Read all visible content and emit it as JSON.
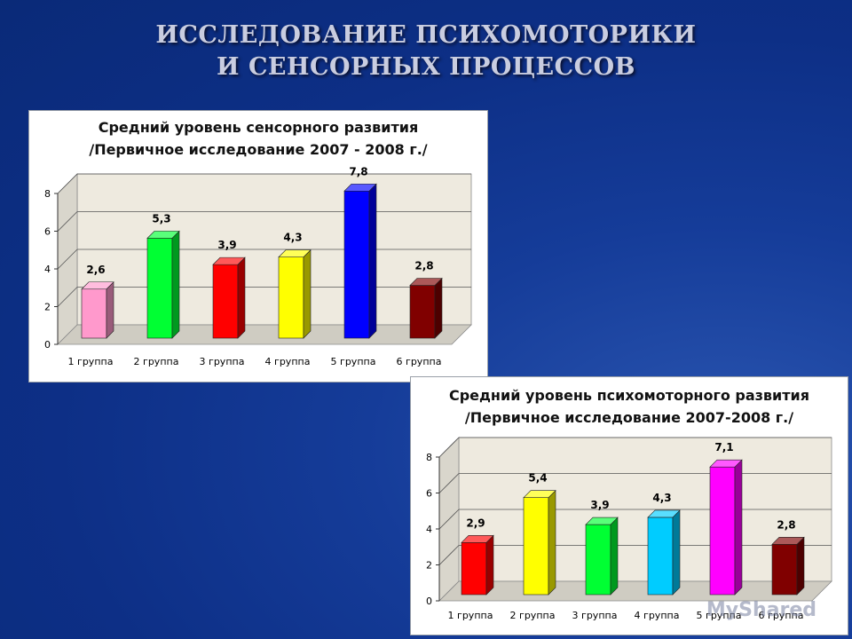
{
  "slide": {
    "title_line1": "ИССЛЕДОВАНИЕ ПСИХОМОТОРИКИ",
    "title_line2": "И СЕНСОРНЫХ ПРОЦЕССОВ",
    "watermark": "MyShared"
  },
  "chart_data": [
    {
      "type": "bar",
      "title_line1": "Средний уровень сенсорного развития",
      "title_line2": "/Первичное исследование 2007 - 2008 г./",
      "categories": [
        "1 группа",
        "2 группа",
        "3 группа",
        "4 группа",
        "5 группа",
        "6 группа"
      ],
      "values": [
        2.6,
        5.3,
        3.9,
        4.3,
        7.8,
        2.8
      ],
      "labels": [
        "2,6",
        "5,3",
        "3,9",
        "4,3",
        "7,8",
        "2,8"
      ],
      "colors": [
        "#ff99cc",
        "#00ff33",
        "#ff0000",
        "#ffff00",
        "#0000ff",
        "#800000"
      ],
      "ylim": [
        0,
        8
      ],
      "yticks": [
        0,
        2,
        4,
        6,
        8
      ],
      "grid": true,
      "legend": "none"
    },
    {
      "type": "bar",
      "title_line1": "Средний уровень психомоторного развития",
      "title_line2": "/Первичное исследование 2007-2008 г./",
      "categories": [
        "1 группа",
        "2 группа",
        "3 группа",
        "4 группа",
        "5 группа",
        "6 группа"
      ],
      "values": [
        2.9,
        5.4,
        3.9,
        4.3,
        7.1,
        2.8
      ],
      "labels": [
        "2,9",
        "5,4",
        "3,9",
        "4,3",
        "7,1",
        "2,8"
      ],
      "colors": [
        "#ff0000",
        "#ffff00",
        "#00ff33",
        "#00ccff",
        "#ff00ff",
        "#800000"
      ],
      "ylim": [
        0,
        8
      ],
      "yticks": [
        0,
        2,
        4,
        6,
        8
      ],
      "grid": true,
      "legend": "none"
    }
  ]
}
